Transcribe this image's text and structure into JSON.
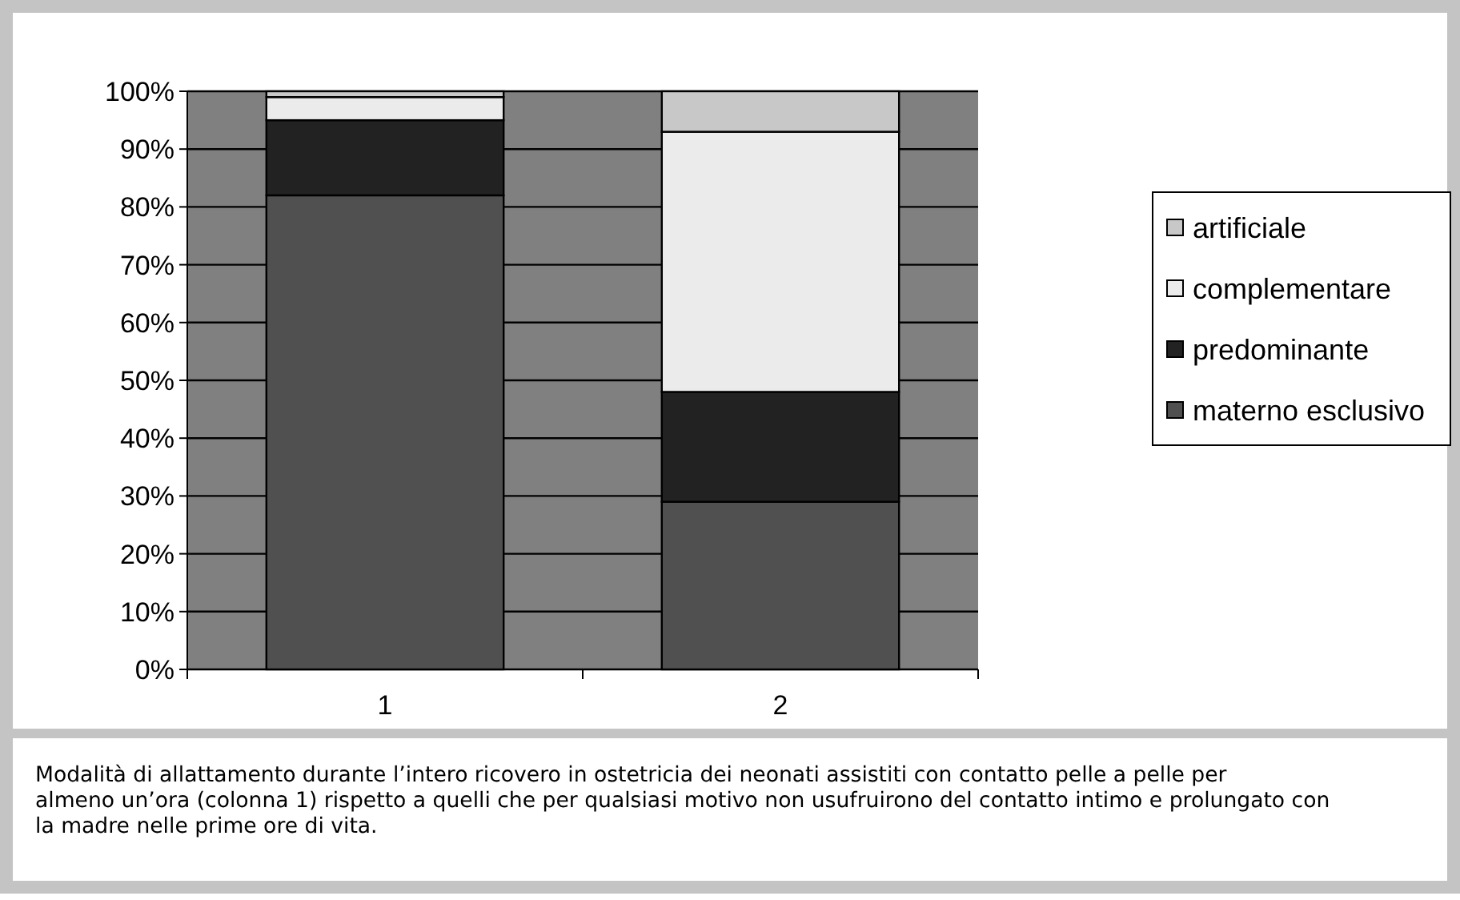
{
  "chart_data": {
    "type": "bar",
    "stacked": true,
    "categories": [
      "1",
      "2"
    ],
    "series": [
      {
        "name": "materno esclusivo",
        "color": "#505050",
        "values": [
          82,
          29
        ]
      },
      {
        "name": "predominante",
        "color": "#222222",
        "values": [
          13,
          19
        ]
      },
      {
        "name": "complementare",
        "color": "#ebebeb",
        "values": [
          4,
          45
        ]
      },
      {
        "name": "artificiale",
        "color": "#c8c8c8",
        "values": [
          1,
          7
        ]
      }
    ],
    "ylim": [
      0,
      100
    ],
    "yticks": [
      {
        "value": 0,
        "label": "0%"
      },
      {
        "value": 10,
        "label": "10%"
      },
      {
        "value": 20,
        "label": "20%"
      },
      {
        "value": 30,
        "label": "30%"
      },
      {
        "value": 40,
        "label": "40%"
      },
      {
        "value": 50,
        "label": "50%"
      },
      {
        "value": 60,
        "label": "60%"
      },
      {
        "value": 70,
        "label": "70%"
      },
      {
        "value": 80,
        "label": "80%"
      },
      {
        "value": 90,
        "label": "90%"
      },
      {
        "value": 100,
        "label": "100%"
      }
    ],
    "grid": "y",
    "legend": "right",
    "annotations": [
      "Modalità di allattamento durante l’intero ricovero in ostetricia dei neonati assistiti con contatto pelle a pelle per almeno un’ora (colonna 1) rispetto a quelli che per qualsiasi motivo non usufruirono del contatto intimo e prolungato con la madre nelle prime ore di vita."
    ]
  }
}
